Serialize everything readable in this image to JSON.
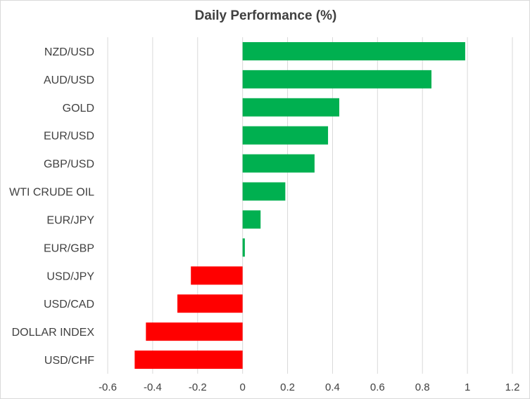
{
  "chart_data": {
    "type": "bar",
    "orientation": "horizontal",
    "title": "Daily Performance (%)",
    "xlabel": "",
    "ylabel": "",
    "categories": [
      "NZD/USD",
      "AUD/USD",
      "GOLD",
      "EUR/USD",
      "GBP/USD",
      "WTI CRUDE OIL",
      "EUR/JPY",
      "EUR/GBP",
      "USD/JPY",
      "USD/CAD",
      "DOLLAR INDEX",
      "USD/CHF"
    ],
    "values": [
      0.99,
      0.84,
      0.43,
      0.38,
      0.32,
      0.19,
      0.08,
      0.01,
      -0.23,
      -0.29,
      -0.43,
      -0.48
    ],
    "xlim": [
      -0.6,
      1.2
    ],
    "xticks": [
      -0.6,
      -0.4,
      -0.2,
      0,
      0.2,
      0.4,
      0.6,
      0.8,
      1,
      1.2
    ],
    "xtick_labels": [
      "-0.6",
      "-0.4",
      "-0.2",
      "0",
      "0.2",
      "0.4",
      "0.6",
      "0.8",
      "1",
      "1.2"
    ],
    "grid": "vertical",
    "legend": "none",
    "colors": {
      "positive": "#00b050",
      "negative": "#ff0000",
      "grid": "#d9d9d9",
      "text": "#404040"
    }
  }
}
